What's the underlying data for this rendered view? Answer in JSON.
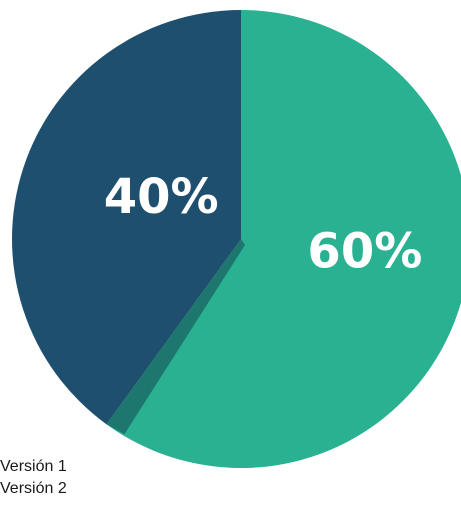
{
  "chart_data": {
    "type": "pie",
    "title": "",
    "categories": [
      "Versión 1",
      "Versión 2"
    ],
    "values": [
      60,
      40
    ],
    "value_labels": [
      "60%",
      "40%"
    ],
    "colors": [
      "#2AB191",
      "#1E4F6E"
    ],
    "legend_position": "bottom-left"
  }
}
